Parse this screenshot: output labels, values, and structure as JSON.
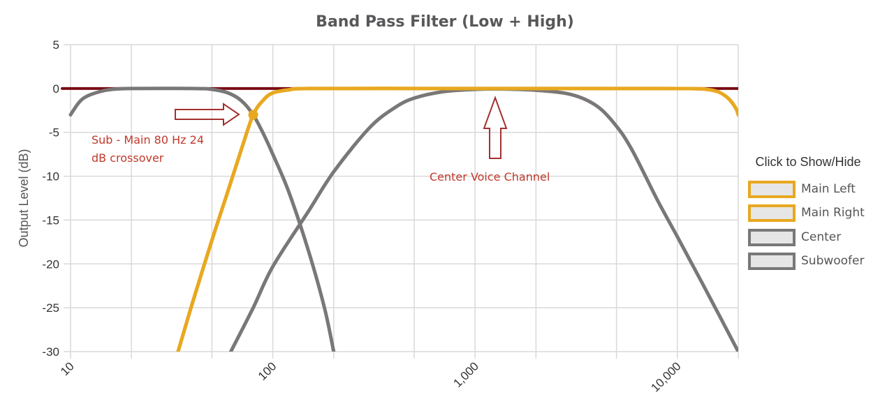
{
  "chart_data": {
    "type": "line",
    "title": "Band Pass Filter (Low + High)",
    "xlabel": "",
    "ylabel": "Output Level (dB)",
    "x_scale": "log",
    "xlim": [
      10,
      20000
    ],
    "ylim": [
      -30,
      5
    ],
    "x_ticks": [
      10,
      100,
      1000,
      10000
    ],
    "x_tick_labels": [
      "10",
      "100",
      "1,000",
      "10,000"
    ],
    "y_ticks": [
      5,
      0,
      -5,
      -10,
      -15,
      -20,
      -25,
      -30
    ],
    "y_tick_labels": [
      "5",
      "0",
      "-5",
      "-10",
      "-15",
      "-20",
      "-25",
      "-30"
    ],
    "grid": true,
    "legend_title": "Click to Show/Hide",
    "legend_position": "right",
    "series": [
      {
        "name": "Main Left",
        "color": "#e8a820",
        "points": [
          [
            34,
            -30
          ],
          [
            40,
            -24.5
          ],
          [
            50,
            -17.3
          ],
          [
            60,
            -11.7
          ],
          [
            70,
            -6.9
          ],
          [
            80,
            -3
          ],
          [
            90,
            -1.3
          ],
          [
            100,
            -0.5
          ],
          [
            120,
            -0.15
          ],
          [
            150,
            0
          ],
          [
            500,
            0
          ],
          [
            2000,
            0
          ],
          [
            8000,
            0
          ],
          [
            12000,
            -0.02
          ],
          [
            14000,
            -0.1
          ],
          [
            16000,
            -0.4
          ],
          [
            18000,
            -1.2
          ],
          [
            19500,
            -2.3
          ],
          [
            20000,
            -3
          ]
        ]
      },
      {
        "name": "Main Right",
        "color": "#e8a820",
        "points": [
          [
            34,
            -30
          ],
          [
            40,
            -24.5
          ],
          [
            50,
            -17.3
          ],
          [
            60,
            -11.7
          ],
          [
            70,
            -6.9
          ],
          [
            80,
            -3
          ],
          [
            90,
            -1.3
          ],
          [
            100,
            -0.5
          ],
          [
            120,
            -0.15
          ],
          [
            150,
            0
          ],
          [
            500,
            0
          ],
          [
            2000,
            0
          ],
          [
            8000,
            0
          ],
          [
            12000,
            -0.02
          ],
          [
            14000,
            -0.1
          ],
          [
            16000,
            -0.4
          ],
          [
            18000,
            -1.2
          ],
          [
            19500,
            -2.3
          ],
          [
            20000,
            -3
          ]
        ]
      },
      {
        "name": "Center",
        "color": "#7a7777",
        "points": [
          [
            62,
            -30
          ],
          [
            80,
            -25
          ],
          [
            100,
            -20.3
          ],
          [
            150,
            -14
          ],
          [
            200,
            -9.5
          ],
          [
            300,
            -4.5
          ],
          [
            400,
            -2.2
          ],
          [
            500,
            -1.1
          ],
          [
            700,
            -0.35
          ],
          [
            1000,
            -0.1
          ],
          [
            1300,
            -0.05
          ],
          [
            2000,
            -0.2
          ],
          [
            3000,
            -0.7
          ],
          [
            4000,
            -2
          ],
          [
            5000,
            -4.3
          ],
          [
            6000,
            -7.1
          ],
          [
            8000,
            -12.8
          ],
          [
            10000,
            -16.9
          ],
          [
            14000,
            -23.2
          ],
          [
            20000,
            -30
          ]
        ]
      },
      {
        "name": "Subwoofer",
        "color": "#7a7777",
        "points": [
          [
            10,
            -3
          ],
          [
            11,
            -1.6
          ],
          [
            12,
            -0.9
          ],
          [
            14,
            -0.35
          ],
          [
            16,
            -0.1
          ],
          [
            20,
            0
          ],
          [
            40,
            0
          ],
          [
            50,
            -0.1
          ],
          [
            60,
            -0.5
          ],
          [
            70,
            -1.4
          ],
          [
            80,
            -3
          ],
          [
            90,
            -5.2
          ],
          [
            100,
            -7.5
          ],
          [
            120,
            -11.8
          ],
          [
            150,
            -18.5
          ],
          [
            180,
            -25
          ],
          [
            200,
            -30
          ]
        ]
      },
      {
        "name": "",
        "color": "#7a0c14",
        "points": [
          [
            10,
            0
          ],
          [
            20000,
            0
          ]
        ]
      }
    ],
    "crossover_point": [
      80,
      -3
    ],
    "annotations": [
      {
        "text_lines": [
          "Sub - Main 80 Hz 24",
          "dB crossover"
        ]
      },
      {
        "text_lines": [
          "Center Voice Channel"
        ]
      }
    ]
  }
}
